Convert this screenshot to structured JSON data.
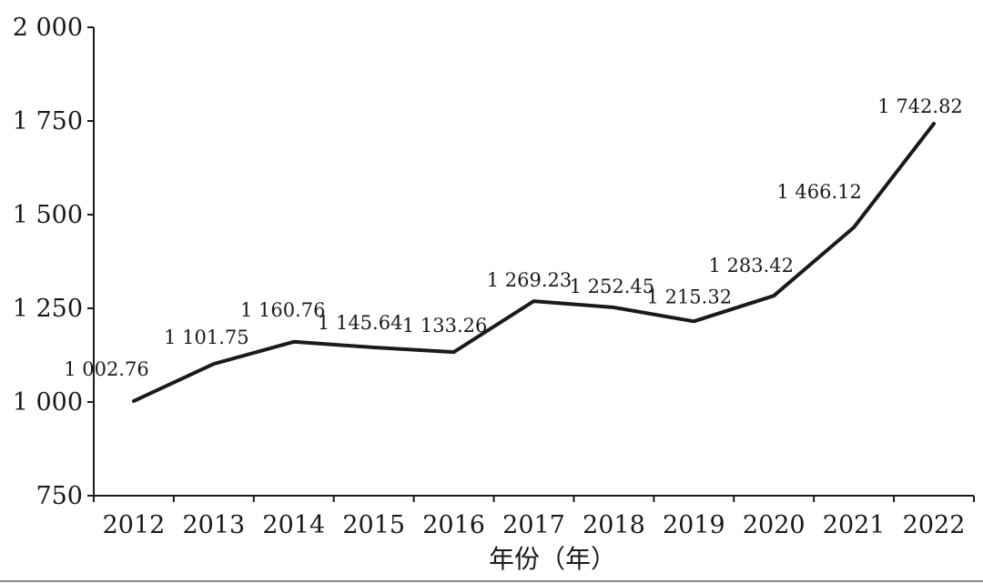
{
  "chart_data": {
    "type": "line",
    "title": "",
    "xlabel": "年份（年）",
    "ylabel": "",
    "categories": [
      "2012",
      "2013",
      "2014",
      "2015",
      "2016",
      "2017",
      "2018",
      "2019",
      "2020",
      "2021",
      "2022"
    ],
    "series": [
      {
        "values": [
          1002.76,
          1101.75,
          1160.76,
          1145.64,
          1133.26,
          1269.23,
          1252.45,
          1215.32,
          1283.42,
          1466.12,
          1742.82
        ],
        "labels": [
          "1 002.76",
          "1 101.75",
          "1 160.76",
          "1 145.64",
          "1 133.26",
          "1 269.23",
          "1 252.45",
          "1 215.32",
          "1 283.42",
          "1 466.12",
          "1 742.82"
        ],
        "color": "#1a1a1a"
      }
    ],
    "ylim": [
      750,
      2000
    ],
    "yticks": [
      750,
      1000,
      1250,
      1500,
      1750,
      2000
    ],
    "ytick_labels": [
      "750",
      "1 000",
      "1 250",
      "1 500",
      "1 750",
      "2 000"
    ],
    "grid": false,
    "legend": "none"
  }
}
